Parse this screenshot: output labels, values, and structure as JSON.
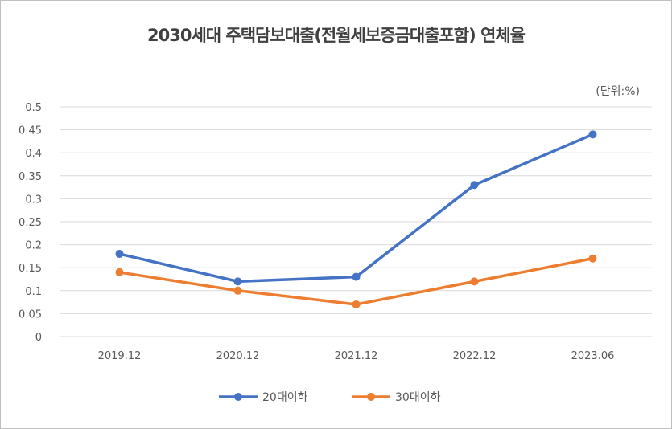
{
  "chart_data": {
    "type": "line",
    "title": "2030세대 주택담보대출(전월세보증금대출포함) 연체율",
    "unit_label": "(단위:%)",
    "categories": [
      "2019.12",
      "2020.12",
      "2021.12",
      "2022.12",
      "2023.06"
    ],
    "series": [
      {
        "name": "20대이하",
        "color": "#4472c4",
        "values": [
          0.18,
          0.12,
          0.13,
          0.33,
          0.44
        ]
      },
      {
        "name": "30대이하",
        "color": "#ed7d31",
        "values": [
          0.14,
          0.1,
          0.07,
          0.12,
          0.17
        ]
      }
    ],
    "yticks": [
      "0",
      "0.05",
      "0.1",
      "0.15",
      "0.2",
      "0.25",
      "0.3",
      "0.35",
      "0.4",
      "0.45",
      "0.5"
    ],
    "ylim": [
      0,
      0.5
    ],
    "grid": true,
    "legend_position": "bottom"
  }
}
